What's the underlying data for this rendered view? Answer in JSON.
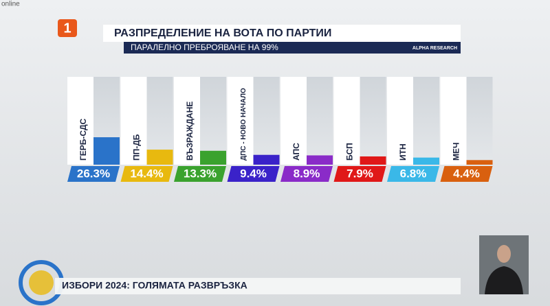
{
  "broadcast": {
    "channel": "1",
    "status": "online",
    "banner": "ИЗБОРИ 2024: ГОЛЯМАТА РАЗВРЪЗКА",
    "source": "ALPHA RESEARCH"
  },
  "chart_data": {
    "type": "bar",
    "title": "РАЗПРЕДЕЛЕНИЕ НА ВОТА ПО ПАРТИИ",
    "subtitle": "ПАРАЛЕЛНО ПРЕБРОЯВАНЕ НА 99%",
    "categories": [
      "ГЕРБ-СДС",
      "ПП-ДБ",
      "ВЪЗРАЖДАНЕ",
      "ДПС - НОВО НАЧАЛО",
      "АПС",
      "БСП",
      "ИТН",
      "МЕЧ"
    ],
    "values": [
      26.3,
      14.4,
      13.3,
      9.4,
      8.9,
      7.9,
      6.8,
      4.4
    ],
    "value_labels": [
      "26.3%",
      "14.4%",
      "13.3%",
      "9.4%",
      "8.9%",
      "7.9%",
      "6.8%",
      "4.4%"
    ],
    "colors": [
      "#2a73c9",
      "#e8b90f",
      "#3aa22e",
      "#3a22c9",
      "#8a2bc8",
      "#e01818",
      "#3ab8e8",
      "#d9600f"
    ]
  }
}
